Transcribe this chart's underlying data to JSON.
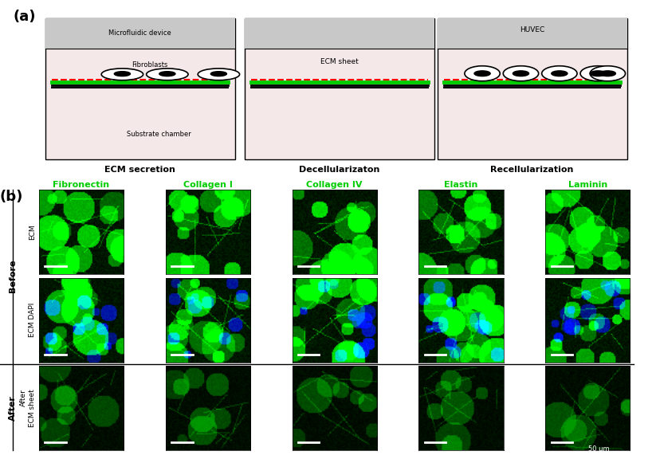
{
  "panel_a_labels": [
    "ECM secretion",
    "Decellularizaton",
    "Recellularization"
  ],
  "panel_b_col_labels": [
    "Fibronectin",
    "Collagen I",
    "Collagen IV",
    "Elastin",
    "Laminin"
  ],
  "panel_b_row_labels": [
    "ECM",
    "ECM DAPI",
    "After\nECM sheet"
  ],
  "row_group_labels": [
    "Before",
    "After"
  ],
  "scale_bar_text": "50 μm",
  "label_a": "(a)",
  "label_b": "(b)",
  "microfluidic_label": "Microfluidic device",
  "fibroblasts_label": "Fibroblasts",
  "substrate_label": "Substrate chamber",
  "ecm_sheet_label": "ECM sheet",
  "huvec_label": "HUVEC",
  "bg_color": "#ffffff",
  "device_top_color": "#c8c8c8",
  "device_body_color": "#f5e8e8",
  "green_line_color": "#00cc00",
  "red_dashed_color": "#ff0000",
  "black_line_color": "#000000",
  "before_ecm_green": "#004400",
  "before_dapi_blue": "#000044",
  "after_ecm_green": "#003300",
  "col_label_color_1": "#00cc00",
  "col_label_color_2": "#00aa00"
}
